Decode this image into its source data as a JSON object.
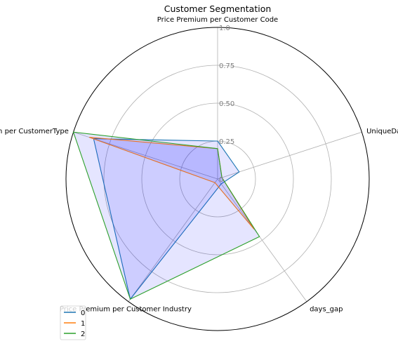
{
  "chart_data": {
    "type": "radar",
    "title": "Customer Segmentation",
    "axes": [
      "Price Premium per Customer Code",
      "UniqueDays",
      "days_gap",
      "Price Premium per Customer Industry",
      "Price Premium per CustomerType"
    ],
    "radial_ticks": [
      "0",
      "0.25",
      "0.50",
      "0.75",
      "1.0"
    ],
    "radial_tick_values": [
      0,
      0.25,
      0.5,
      0.75,
      1.0
    ],
    "rlim": [
      0,
      1.0
    ],
    "grid": true,
    "legend_position": "bottom-left",
    "series": [
      {
        "name": "0",
        "values": [
          0.25,
          0.15,
          0.04,
          0.98,
          0.86
        ],
        "color": "#1f77b4",
        "fill": "#0000ff",
        "fill_opacity": 0.1
      },
      {
        "name": "1",
        "values": [
          0.2,
          0.03,
          0.41,
          0.03,
          0.89
        ],
        "color": "#ff7f0e",
        "fill": "#0000ff",
        "fill_opacity": 0.1
      },
      {
        "name": "2",
        "values": [
          0.2,
          0.03,
          0.47,
          0.98,
          1.0
        ],
        "color": "#2ca02c",
        "fill": "#0000ff",
        "fill_opacity": 0.1
      }
    ]
  }
}
